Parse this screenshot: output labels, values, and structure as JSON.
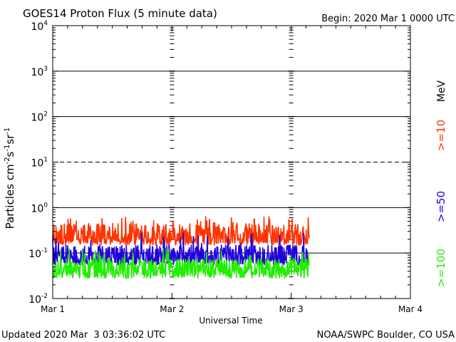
{
  "chart_data": {
    "type": "line",
    "title": "GOES14 Proton Flux (5 minute data)",
    "begin_label": "Begin: 2020 Mar 1 0000 UTC",
    "xlabel": "Universal Time",
    "ylabel_parts": {
      "base": "Particles cm",
      "e1": "-2",
      "s": "s",
      "e2": "-1",
      "sr": "sr",
      "e3": "-1"
    },
    "energy_unit": "MeV",
    "footer_left": "Updated 2020 Mar  3 03:36:02 UTC",
    "footer_right": "NOAA/SWPC Boulder, CO USA",
    "x_unit": "days since 2020 Mar 1 0000 UTC",
    "xlim": [
      0,
      3
    ],
    "x_ticks": [
      {
        "value": 0,
        "label": "Mar 1"
      },
      {
        "value": 1,
        "label": "Mar 2"
      },
      {
        "value": 2,
        "label": "Mar 3"
      },
      {
        "value": 3,
        "label": "Mar 4"
      }
    ],
    "y_scale": "log",
    "ylim": [
      0.01,
      10000
    ],
    "y_ticks": [
      {
        "value": 0.01,
        "base": "10",
        "exp": "-2"
      },
      {
        "value": 0.1,
        "base": "10",
        "exp": "-1"
      },
      {
        "value": 1,
        "base": "10",
        "exp": "0"
      },
      {
        "value": 10,
        "base": "10",
        "exp": "1"
      },
      {
        "value": 100,
        "base": "10",
        "exp": "2"
      },
      {
        "value": 1000,
        "base": "10",
        "exp": "3"
      },
      {
        "value": 10000,
        "base": "10",
        "exp": "4"
      }
    ],
    "gridlines": [
      {
        "value": 0.1,
        "style": "solid"
      },
      {
        "value": 1,
        "style": "solid"
      },
      {
        "value": 10,
        "style": "dashed"
      },
      {
        "value": 100,
        "style": "solid"
      },
      {
        "value": 1000,
        "style": "solid"
      }
    ],
    "data_end_day": 2.15,
    "series": [
      {
        "name": ">=10",
        "color": "#ff3300",
        "baseline": 0.21,
        "typical_min": 0.15,
        "typical_max": 0.45,
        "peak": 0.65
      },
      {
        "name": ">=50",
        "color": "#2200dd",
        "baseline": 0.075,
        "typical_min": 0.055,
        "typical_max": 0.15,
        "peak": 0.3
      },
      {
        "name": ">=100",
        "color": "#22ee00",
        "baseline": 0.04,
        "typical_min": 0.028,
        "typical_max": 0.075,
        "peak": 0.13
      }
    ]
  }
}
